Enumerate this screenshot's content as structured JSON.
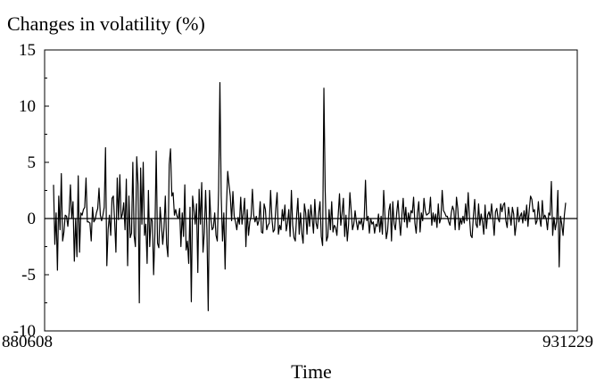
{
  "chart_data": {
    "type": "line",
    "title": "",
    "ylabel": "Changes in volatility (%)",
    "xlabel": "Time",
    "x_tick_labels": [
      "880608",
      "931229"
    ],
    "y_ticks": [
      15,
      10,
      5,
      0,
      -5,
      -10
    ],
    "y_tick_labels": [
      "15",
      "10",
      "5",
      "0",
      "-5",
      "-10"
    ],
    "ylim": [
      -10,
      15
    ],
    "zero_line": true,
    "grid": false,
    "line_color": "#000000",
    "series": [
      {
        "values": [
          3.0,
          -2.3,
          0.5,
          -4.6,
          2.0,
          -1.0,
          4.0,
          -2.0,
          -1.2,
          0.3,
          0.2,
          -0.7,
          0.5,
          3.0,
          0.0,
          1.5,
          -3.8,
          0.0,
          -3.4,
          3.8,
          -3.0,
          0.5,
          0.3,
          0.8,
          1.0,
          3.6,
          -0.3,
          -0.3,
          -0.4,
          -2.0,
          1.0,
          -0.3,
          -0.1,
          0.5,
          0.9,
          2.7,
          0.3,
          -0.2,
          0.3,
          1.0,
          6.3,
          -4.2,
          -1.0,
          0.3,
          -1.5,
          1.8,
          2.0,
          -0.2,
          -3.0,
          3.6,
          -0.1,
          3.9,
          0.0,
          0.4,
          1.4,
          -1.0,
          3.5,
          -4.2,
          2.0,
          -1.7,
          -1.3,
          5.0,
          -1.5,
          -2.5,
          5.5,
          3.0,
          -7.5,
          4.5,
          -0.5,
          5.0,
          -1.5,
          -0.5,
          -4.0,
          2.5,
          -2.5,
          0.0,
          -0.2,
          -5.0,
          -1.3,
          6.0,
          -2.2,
          -2.6,
          1.0,
          -0.5,
          -2.3,
          -0.8,
          2.0,
          -2.3,
          -3.4,
          4.8,
          6.2,
          2.0,
          2.3,
          0.3,
          0.8,
          0.2,
          0.0,
          0.9,
          -2.5,
          0.5,
          -1.6,
          3.0,
          -2.8,
          -2.0,
          -4.0,
          1.0,
          -7.4,
          2.0,
          0.8,
          -0.5,
          1.3,
          -4.8,
          2.6,
          -0.5,
          3.2,
          -3.0,
          -1.3,
          2.5,
          -1.0,
          -8.2,
          2.5,
          0.0,
          -1.0,
          -0.8,
          0.5,
          -1.5,
          -2.0,
          2.5,
          12.1,
          2.0,
          -2.0,
          0.5,
          -4.5,
          1.0,
          4.2,
          3.0,
          2.0,
          -0.2,
          2.4,
          0.2,
          -0.3,
          -1.0,
          0.1,
          -0.5,
          1.9,
          -0.5,
          0.5,
          1.8,
          -2.5,
          0.8,
          -1.5,
          -0.3,
          0.2,
          2.6,
          0.3,
          -0.3,
          0.2,
          -0.6,
          -0.2,
          1.5,
          -1.2,
          -1.3,
          1.3,
          0.8,
          -1.0,
          -0.6,
          -0.4,
          2.5,
          0.0,
          -1.2,
          -1.0,
          0.9,
          2.3,
          -1.4,
          -0.6,
          -1.0,
          0.8,
          -0.2,
          1.2,
          -1.1,
          -0.4,
          0.8,
          -1.6,
          2.5,
          -0.6,
          -1.7,
          -2.0,
          0.2,
          1.8,
          -1.4,
          0.5,
          -1.3,
          -2.2,
          1.3,
          0.5,
          -1.4,
          0.8,
          -0.7,
          1.2,
          0.0,
          -1.3,
          1.7,
          -0.4,
          -0.9,
          0.5,
          1.5,
          -1.6,
          -2.4,
          11.6,
          2.5,
          -2.0,
          -1.6,
          0.8,
          -1.0,
          1.5,
          -1.2,
          -0.6,
          -0.8,
          -1.5,
          0.3,
          2.2,
          -0.6,
          0.5,
          1.8,
          -1.6,
          0.3,
          -2.0,
          -0.5,
          2.3,
          0.7,
          -1.0,
          -0.5,
          0.7,
          -0.3,
          -1.0,
          -0.2,
          -0.5,
          0.0,
          -1.0,
          0.0,
          3.4,
          -0.2,
          0.2,
          -1.3,
          0.0,
          -0.5,
          -0.3,
          -1.3,
          -0.5,
          -0.7,
          0.4,
          -1.2,
          0.2,
          -1.4,
          2.5,
          0.2,
          -1.8,
          -1.1,
          0.7,
          1.3,
          -2.0,
          1.5,
          -0.5,
          -1.0,
          0.5,
          1.6,
          -0.2,
          -1.5,
          0.3,
          1.8,
          -0.3,
          1.0,
          -0.8,
          0.5,
          -0.3,
          0.7,
          0.5,
          1.9,
          -0.4,
          -1.3,
          0.5,
          1.5,
          -1.2,
          0.5,
          -0.2,
          1.8,
          0.7,
          0.3,
          0.4,
          0.5,
          1.9,
          -0.6,
          0.5,
          -0.3,
          0.4,
          -0.8,
          1.3,
          -0.4,
          0.0,
          2.5,
          0.7,
          0.5,
          0.2,
          0.2,
          -0.3,
          -0.6,
          0.5,
          1.1,
          0.7,
          -1.0,
          1.9,
          0.9,
          -1.0,
          0.0,
          -0.5,
          0.2,
          -0.4,
          1.3,
          -0.2,
          2.3,
          0.1,
          -1.5,
          -1.7,
          0.2,
          1.7,
          -0.5,
          -0.8,
          1.3,
          -0.6,
          0.4,
          -0.3,
          -1.4,
          1.2,
          -0.9,
          0.3,
          0.6,
          0.0,
          1.3,
          0.0,
          -1.5,
          0.6,
          0.9,
          0.0,
          -0.3,
          1.3,
          0.6,
          1.2,
          1.4,
          -0.2,
          -0.8,
          1.0,
          0.3,
          -0.6,
          1.0,
          0.4,
          -1.5,
          -0.5,
          1.0,
          -0.3,
          0.2,
          0.5,
          -0.4,
          0.7,
          -0.2,
          1.2,
          -0.7,
          0.8,
          2.0,
          1.7,
          0.6,
          0.8,
          -0.5,
          -0.2,
          1.5,
          0.0,
          -0.7,
          1.6,
          0.0,
          0.3,
          0.0,
          -1.0,
          0.5,
          0.3,
          3.3,
          -1.5,
          0.1,
          -1.0,
          -0.3,
          2.5,
          -4.3,
          0.2,
          -0.5,
          -1.5,
          0.3,
          1.4
        ]
      }
    ]
  }
}
